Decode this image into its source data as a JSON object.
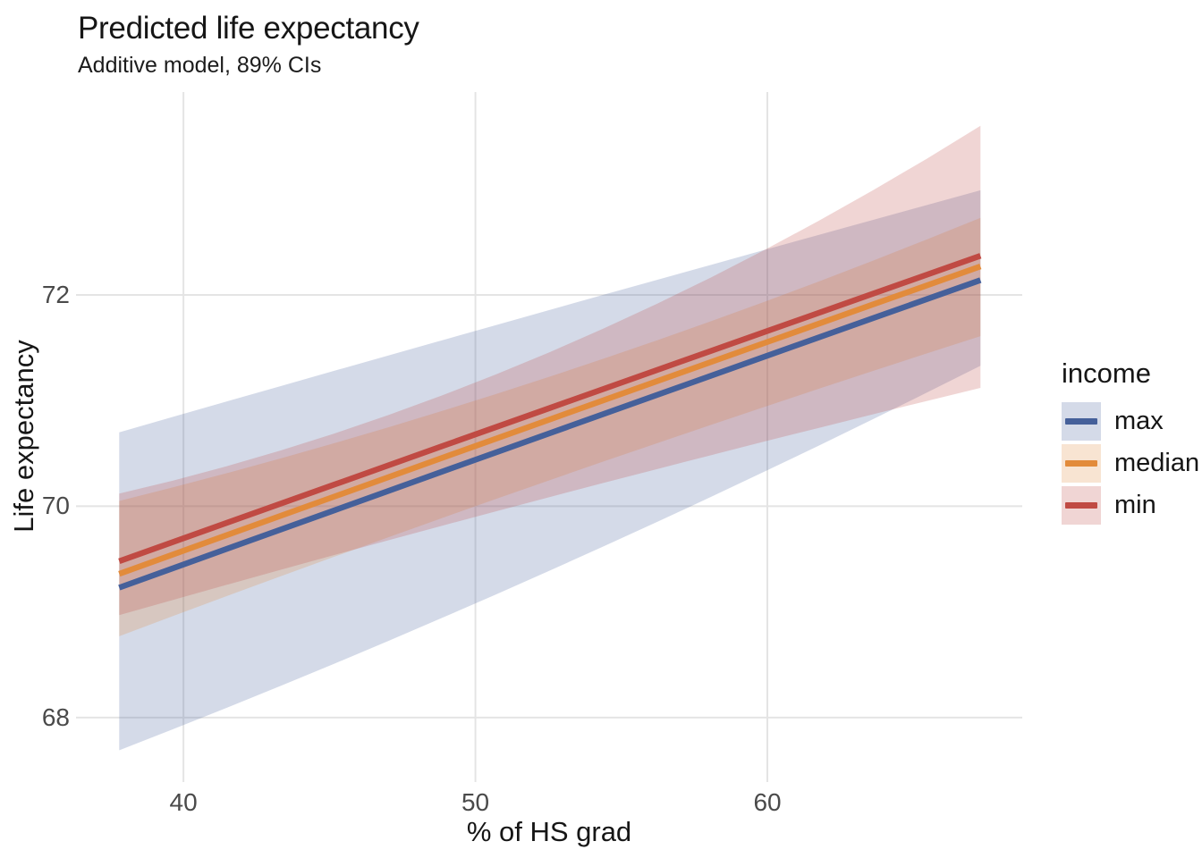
{
  "chart_data": {
    "type": "line",
    "title": "Predicted life expectancy",
    "subtitle": "Additive model, 89% CIs",
    "xlabel": "% of HS grad",
    "ylabel": "Life expectancy",
    "ci_level": "89%",
    "x_ticks": [
      40,
      50,
      60
    ],
    "y_ticks": [
      68,
      70,
      72
    ],
    "xlim": [
      36.32,
      68.73
    ],
    "ylim": [
      67.39,
      73.92
    ],
    "grid": "major only, light grey, no axis lines, no tick marks",
    "gridline_color": "#e4e4e4",
    "ribbon_opacity": 0.23,
    "text_color": "#161616",
    "tick_label_color": "#4a4a4a",
    "legend": {
      "title": "income",
      "position": "right"
    },
    "x": [
      37.8,
      50,
      67.3
    ],
    "series": [
      {
        "name": "max",
        "color": "#45609a",
        "line": [
          69.23,
          70.44,
          72.14
        ],
        "upper": [
          70.7,
          71.66,
          72.99
        ],
        "lower": [
          67.69,
          69.08,
          71.33
        ]
      },
      {
        "name": "median",
        "color": "#e28b3b",
        "line": [
          69.36,
          70.57,
          72.27
        ],
        "upper": [
          70.05,
          71.0,
          72.73
        ],
        "lower": [
          68.77,
          70.0,
          71.61
        ]
      },
      {
        "name": "min",
        "color": "#c04a43",
        "line": [
          69.48,
          70.68,
          72.37
        ],
        "upper": [
          70.12,
          71.17,
          73.6
        ],
        "lower": [
          68.97,
          69.9,
          71.12
        ]
      }
    ]
  }
}
